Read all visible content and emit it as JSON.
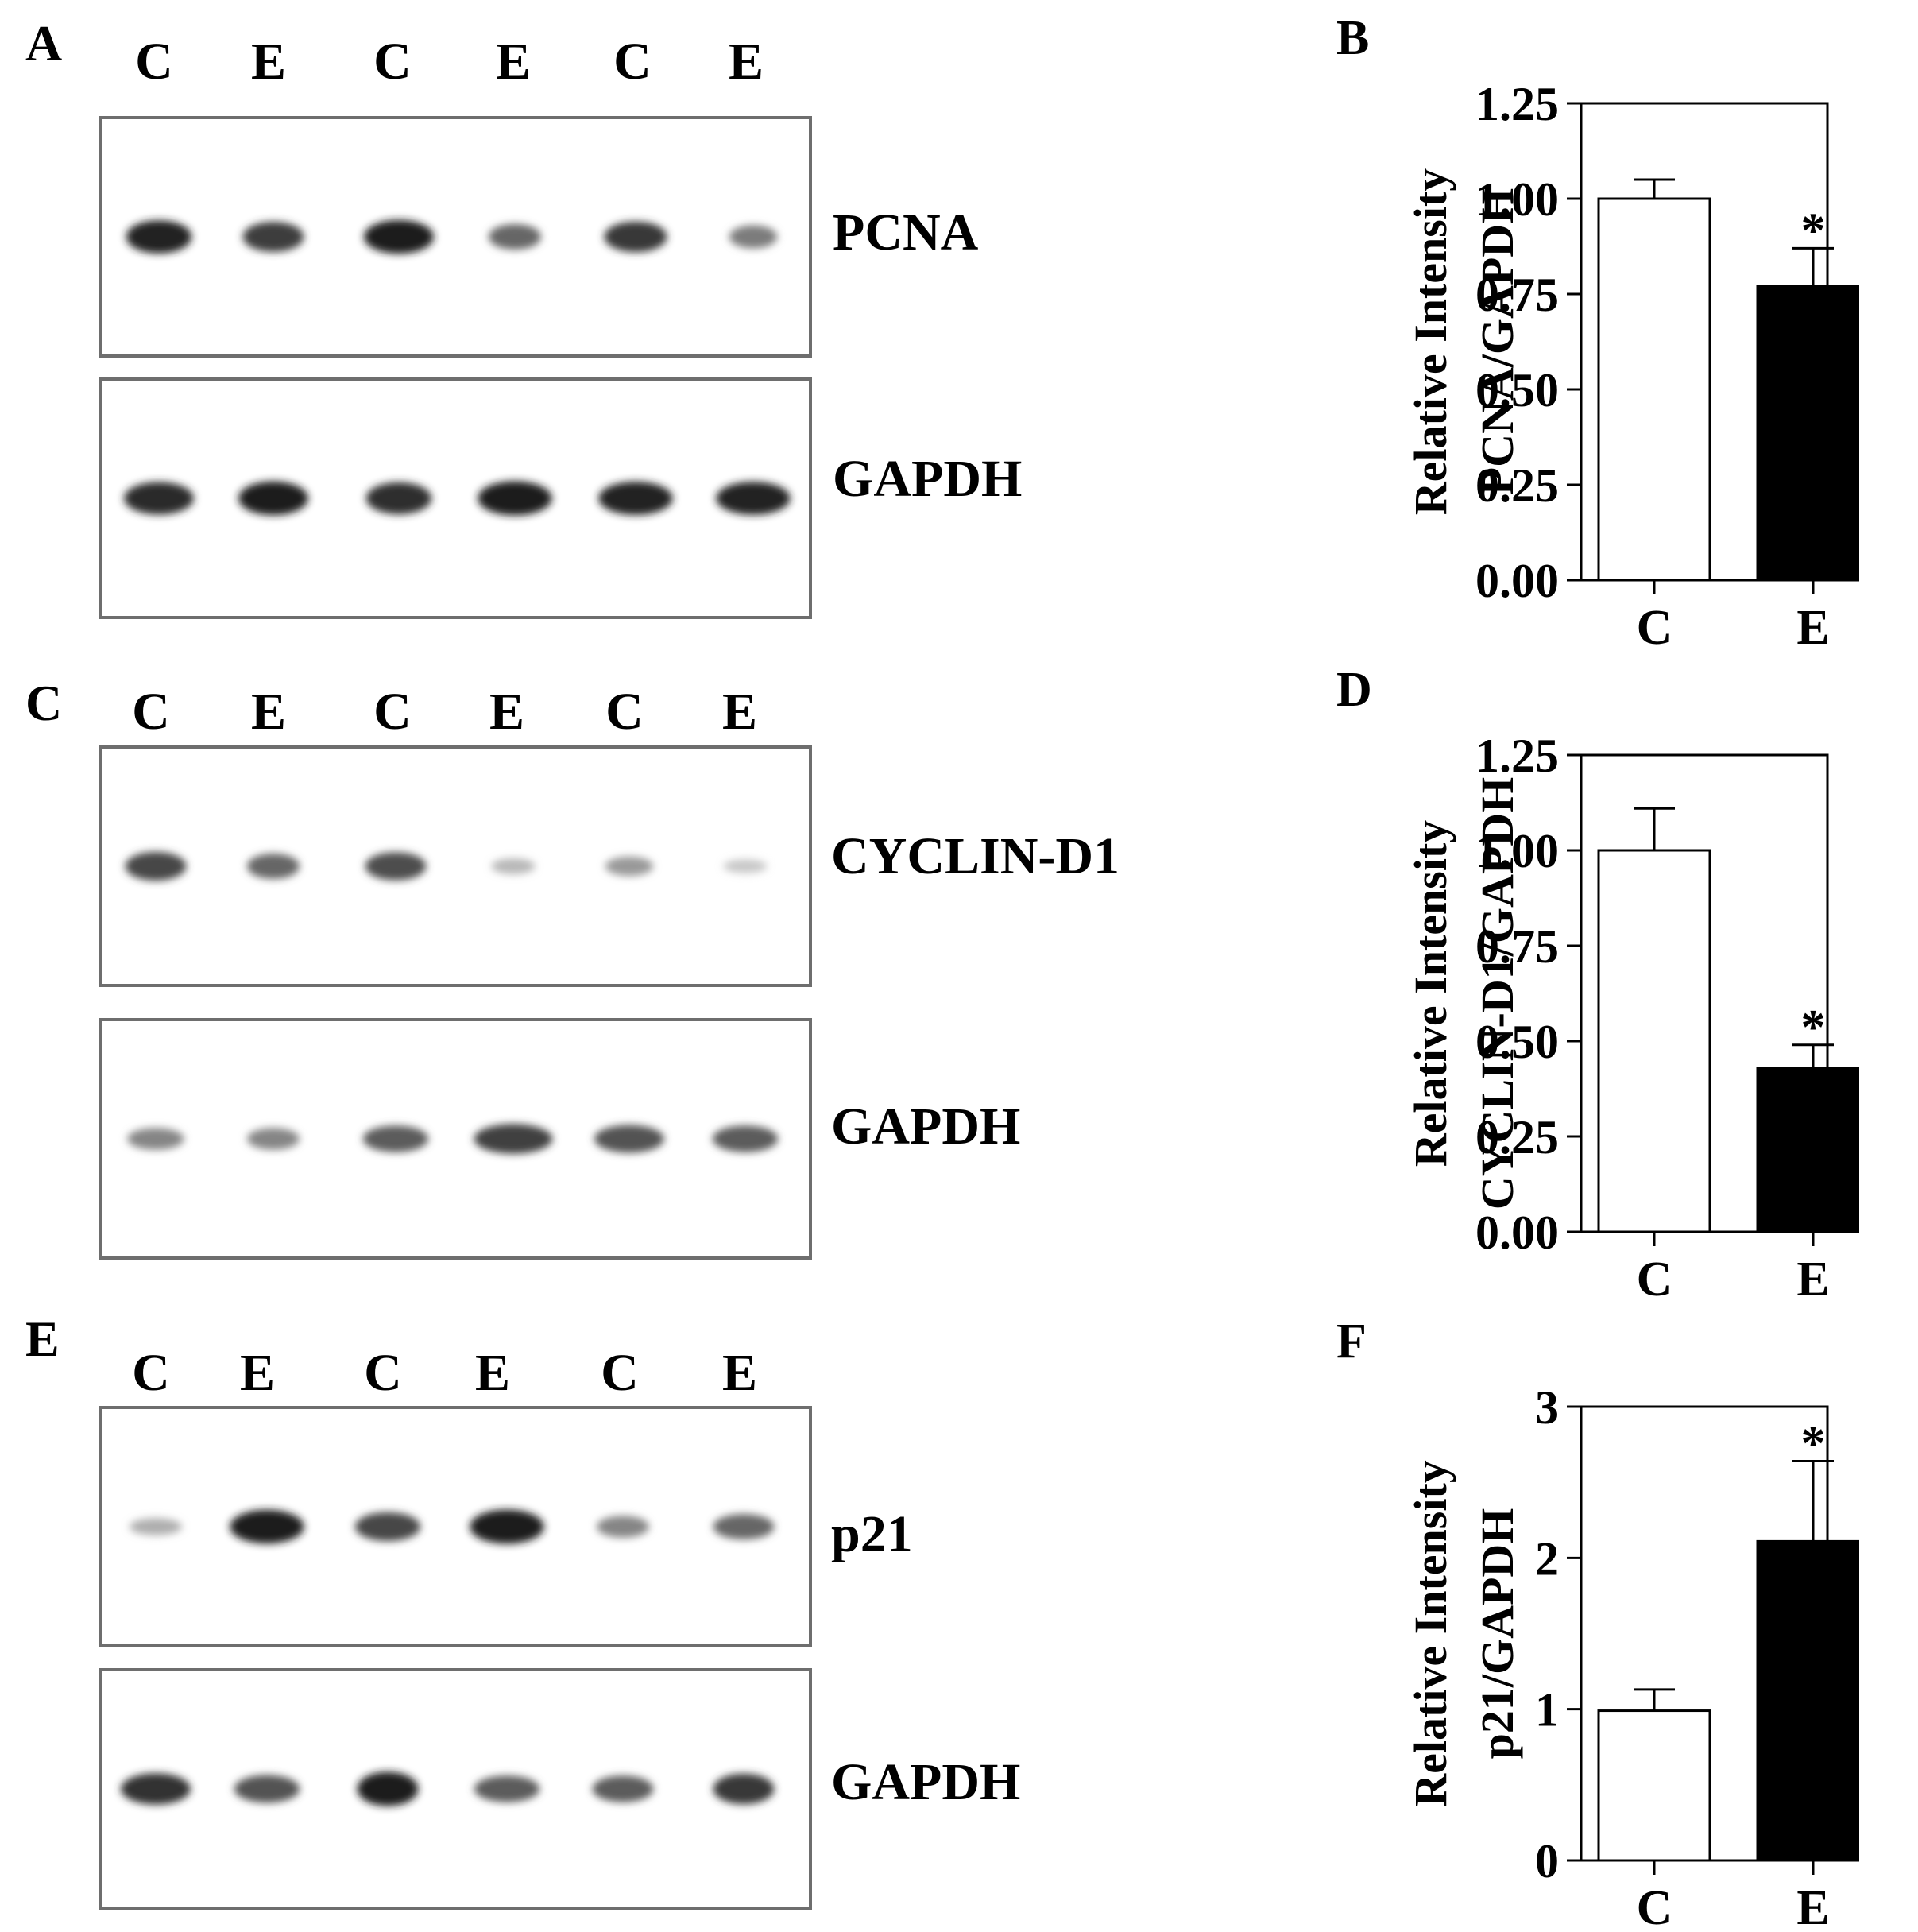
{
  "colors": {
    "ink": "#000000",
    "blot_border": "#6e6e6e",
    "control_fill": "#ffffff",
    "treated_fill": "#000000"
  },
  "blots": [
    {
      "letter": "A",
      "lanes": [
        "C",
        "E",
        "C",
        "E",
        "C",
        "E"
      ],
      "strips": [
        {
          "protein": "PCNA",
          "band_intensity": [
            0.92,
            0.8,
            0.95,
            0.6,
            0.82,
            0.5
          ],
          "band_width": [
            0.75,
            0.7,
            0.8,
            0.6,
            0.72,
            0.55
          ]
        },
        {
          "protein": "GAPDH",
          "band_intensity": [
            0.9,
            0.95,
            0.88,
            0.97,
            0.93,
            0.92
          ],
          "band_width": [
            0.8,
            0.8,
            0.75,
            0.85,
            0.85,
            0.85
          ]
        }
      ]
    },
    {
      "letter": "C",
      "lanes": [
        "C",
        "E",
        "C",
        "E",
        "C",
        "E"
      ],
      "strips": [
        {
          "protein": "CYCLIN-D1",
          "band_intensity": [
            0.75,
            0.6,
            0.72,
            0.2,
            0.35,
            0.12
          ],
          "band_width": [
            0.7,
            0.6,
            0.7,
            0.5,
            0.55,
            0.5
          ]
        },
        {
          "protein": "GAPDH",
          "band_intensity": [
            0.45,
            0.45,
            0.65,
            0.78,
            0.7,
            0.65
          ],
          "band_width": [
            0.65,
            0.6,
            0.75,
            0.9,
            0.8,
            0.75
          ]
        }
      ]
    },
    {
      "letter": "E",
      "lanes": [
        "C",
        "E",
        "C",
        "E",
        "C",
        "E"
      ],
      "strips": [
        {
          "protein": "p21",
          "band_intensity": [
            0.25,
            0.95,
            0.75,
            0.97,
            0.45,
            0.6
          ],
          "band_width": [
            0.6,
            0.85,
            0.75,
            0.85,
            0.6,
            0.7
          ]
        },
        {
          "protein": "GAPDH",
          "band_intensity": [
            0.85,
            0.7,
            0.97,
            0.65,
            0.65,
            0.82
          ],
          "band_width": [
            0.8,
            0.75,
            0.7,
            0.75,
            0.7,
            0.7
          ]
        }
      ]
    }
  ],
  "chart_data": [
    {
      "type": "bar",
      "letter": "B",
      "categories": [
        "C",
        "E"
      ],
      "values": [
        1.0,
        0.77
      ],
      "errors": [
        0.05,
        0.1
      ],
      "significance": [
        "",
        "*"
      ],
      "ylabel_lines": [
        "Relative Intensity",
        "PCNA/GAPDH"
      ],
      "ylim": [
        0,
        1.25
      ],
      "yticks": [
        "0.00",
        "0.25",
        "0.50",
        "0.75",
        "1.00",
        "1.25"
      ],
      "ytick_values": [
        0,
        0.25,
        0.5,
        0.75,
        1.0,
        1.25
      ],
      "bar_colors": [
        "#ffffff",
        "#000000"
      ],
      "grid": false
    },
    {
      "type": "bar",
      "letter": "D",
      "categories": [
        "C",
        "E"
      ],
      "values": [
        1.0,
        0.43
      ],
      "errors": [
        0.11,
        0.06
      ],
      "significance": [
        "",
        "*"
      ],
      "ylabel_lines": [
        "Relative Intensity",
        "CYCLIN-D1/GAPDH"
      ],
      "ylim": [
        0,
        1.25
      ],
      "yticks": [
        "0.00",
        "0.25",
        "0.50",
        "0.75",
        "1.00",
        "1.25"
      ],
      "ytick_values": [
        0,
        0.25,
        0.5,
        0.75,
        1.0,
        1.25
      ],
      "bar_colors": [
        "#ffffff",
        "#000000"
      ],
      "grid": false
    },
    {
      "type": "bar",
      "letter": "F",
      "categories": [
        "C",
        "E"
      ],
      "values": [
        0.99,
        2.11
      ],
      "errors": [
        0.14,
        0.53
      ],
      "significance": [
        "",
        "*"
      ],
      "ylabel_lines": [
        "Relative Intensity",
        "p21/GAPDH"
      ],
      "ylim": [
        0,
        3
      ],
      "yticks": [
        "0",
        "1",
        "2",
        "3"
      ],
      "ytick_values": [
        0,
        1,
        2,
        3
      ],
      "bar_colors": [
        "#ffffff",
        "#000000"
      ],
      "grid": false
    }
  ]
}
